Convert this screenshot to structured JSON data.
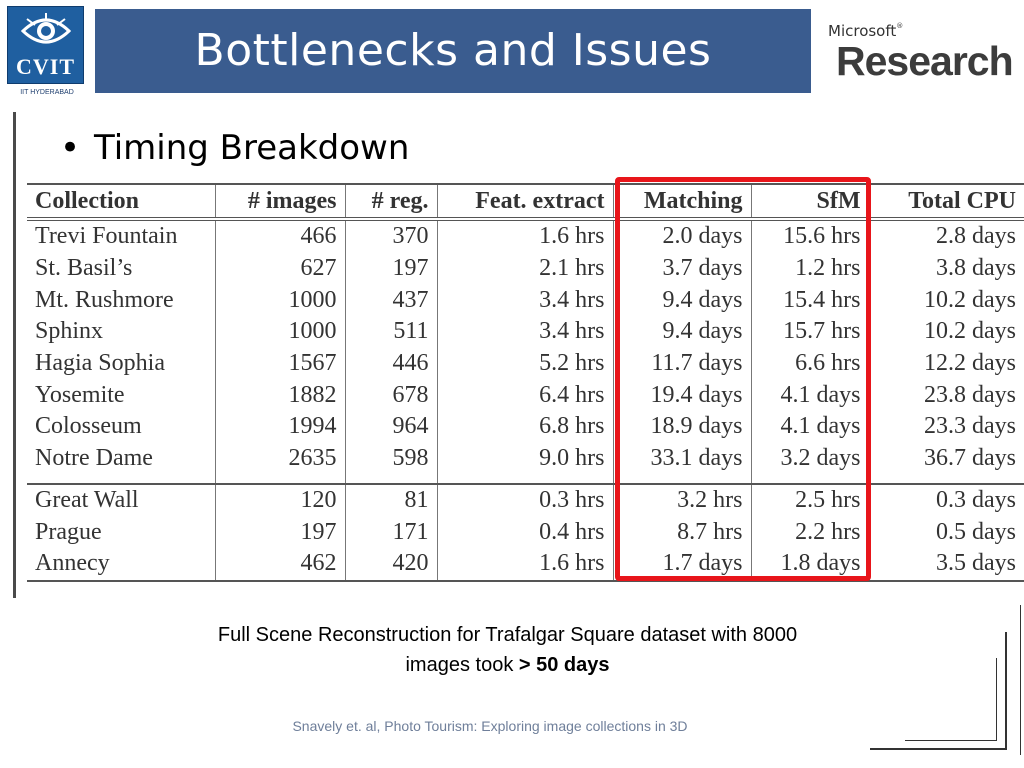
{
  "logo": {
    "name": "CVIT",
    "subtitle": "IIT HYDERABAD"
  },
  "title": "Bottlenecks and Issues",
  "sponsor_logo": {
    "top": "Microsoft",
    "bottom": "Research"
  },
  "bullet": "Timing Breakdown",
  "table": {
    "headers": [
      "Collection",
      "# images",
      "# reg.",
      "Feat. extract",
      "Matching",
      "SfM",
      "Total CPU"
    ],
    "group1": [
      [
        "Trevi Fountain",
        "466",
        "370",
        "1.6 hrs",
        "2.0 days",
        "15.6 hrs",
        "2.8 days"
      ],
      [
        "St. Basil’s",
        "627",
        "197",
        "2.1 hrs",
        "3.7 days",
        "1.2 hrs",
        "3.8 days"
      ],
      [
        "Mt. Rushmore",
        "1000",
        "437",
        "3.4 hrs",
        "9.4 days",
        "15.4 hrs",
        "10.2 days"
      ],
      [
        "Sphinx",
        "1000",
        "511",
        "3.4 hrs",
        "9.4 days",
        "15.7 hrs",
        "10.2 days"
      ],
      [
        "Hagia Sophia",
        "1567",
        "446",
        "5.2 hrs",
        "11.7 days",
        "6.6 hrs",
        "12.2 days"
      ],
      [
        "Yosemite",
        "1882",
        "678",
        "6.4 hrs",
        "19.4 days",
        "4.1 days",
        "23.8 days"
      ],
      [
        "Colosseum",
        "1994",
        "964",
        "6.8 hrs",
        "18.9 days",
        "4.1 days",
        "23.3 days"
      ],
      [
        "Notre Dame",
        "2635",
        "598",
        "9.0 hrs",
        "33.1 days",
        "3.2 days",
        "36.7 days"
      ]
    ],
    "group2": [
      [
        "Great Wall",
        "120",
        "81",
        "0.3 hrs",
        "3.2 hrs",
        "2.5 hrs",
        "0.3 days"
      ],
      [
        "Prague",
        "197",
        "171",
        "0.4 hrs",
        "8.7 hrs",
        "2.2 hrs",
        "0.5 days"
      ],
      [
        "Annecy",
        "462",
        "420",
        "1.6 hrs",
        "1.7 days",
        "1.8 days",
        "3.5 days"
      ]
    ]
  },
  "caption": {
    "line1": "Full Scene Reconstruction for Trafalgar Square dataset with 8000",
    "line2_prefix": "images took ",
    "line2_bold": " > 50 days"
  },
  "citation": "Snavely et. al, Photo Tourism: Exploring image collections in 3D",
  "colors": {
    "title_bar": "#3a5c8f",
    "highlight_box": "#e8151a",
    "logo_bg": "#1f5fa0"
  }
}
